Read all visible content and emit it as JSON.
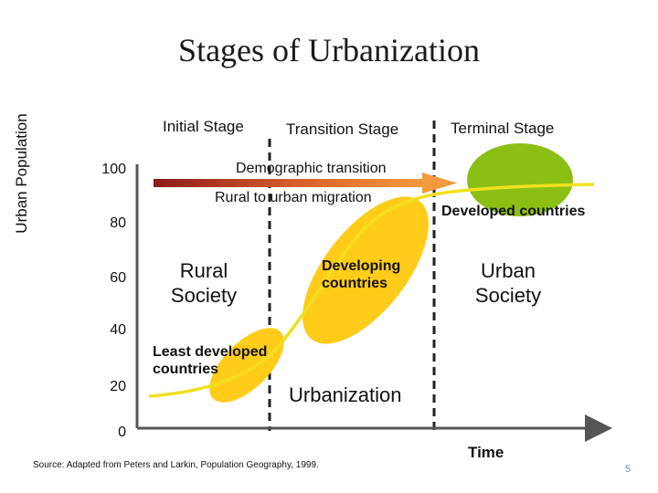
{
  "title": "Stages of Urbanization",
  "stages": [
    "Initial Stage",
    "Transition Stage",
    "Terminal Stage"
  ],
  "y_axis": {
    "label": "Urban Population",
    "ticks": [
      "100",
      "80",
      "60",
      "40",
      "20",
      "0"
    ]
  },
  "x_axis": {
    "label": "Time"
  },
  "arrow_labels": {
    "demographic": "Demographic transition",
    "migration": "Rural to urban migration"
  },
  "blob_labels": {
    "developed": "Developed countries",
    "developing": "Developing countries",
    "least_developed": "Least developed countries"
  },
  "society_labels": {
    "rural": "Rural Society",
    "urban": "Urban Society"
  },
  "curve_label": "Urbanization",
  "source": "Source: Adapted from Peters and Larkin, Population Geography, 1999.",
  "page_number": "5",
  "colors": {
    "axis": "#555555",
    "curve": "#f2e020",
    "blob_yellow": "#ffcc1a",
    "blob_green": "#8cbf14",
    "arrow_start": "#8b1a1a",
    "arrow_end": "#f39a3c"
  }
}
